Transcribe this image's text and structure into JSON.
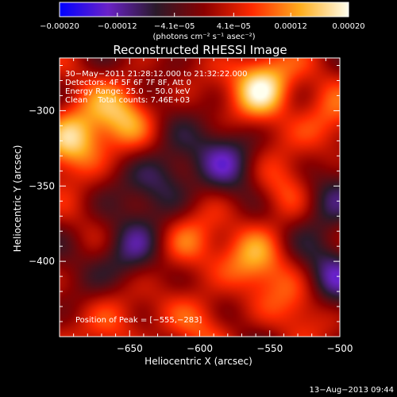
{
  "chart_data": {
    "type": "heatmap",
    "title": "Reconstructed RHESSI Image",
    "xlabel": "Heliocentric X (arcsec)",
    "ylabel": "Heliocentric Y (arcsec)",
    "xlim": [
      -700,
      -500
    ],
    "ylim": [
      -450,
      -265
    ],
    "x_ticks": [
      -650,
      -600,
      -550,
      -500
    ],
    "x_tick_labels": [
      "−650",
      "−600",
      "−550",
      "−500"
    ],
    "y_ticks": [
      -300,
      -350,
      -400
    ],
    "y_tick_labels": [
      "−300",
      "−350",
      "−400"
    ],
    "colorbar": {
      "range": [
        -0.0002,
        0.0002
      ],
      "ticks": [
        -0.0002,
        -0.00012,
        -4.1e-05,
        4.1e-05,
        0.00012,
        0.0002
      ],
      "tick_labels": [
        "−0.00020",
        "−0.00012",
        "−4.1e−05",
        "4.1e−05",
        "0.00012",
        "0.00020"
      ],
      "label": "(photons cm⁻² s⁻¹ asec⁻²)",
      "colormap": [
        "#0000ff",
        "#6a22c8",
        "#2a1a2a",
        "#8a0000",
        "#ff2a00",
        "#ffae1e",
        "#ffffee"
      ]
    },
    "sources": [
      {
        "x": -555,
        "y": -283,
        "amp": 1.0
      },
      {
        "x": -690,
        "y": -320,
        "amp": 0.9
      },
      {
        "x": -655,
        "y": -300,
        "amp": 0.6
      },
      {
        "x": -560,
        "y": -400,
        "amp": 0.55
      },
      {
        "x": -610,
        "y": -390,
        "amp": 0.5
      },
      {
        "x": -510,
        "y": -310,
        "amp": 0.5
      },
      {
        "x": -660,
        "y": -440,
        "amp": 0.45
      },
      {
        "x": -595,
        "y": -440,
        "amp": 0.35
      },
      {
        "x": -540,
        "y": -355,
        "amp": 0.4
      },
      {
        "x": -530,
        "y": -430,
        "amp": 0.35
      },
      {
        "x": -625,
        "y": -345,
        "amp": -0.5
      },
      {
        "x": -580,
        "y": -330,
        "amp": -0.45
      },
      {
        "x": -510,
        "y": -360,
        "amp": -0.5
      },
      {
        "x": -650,
        "y": -395,
        "amp": -0.55
      },
      {
        "x": -505,
        "y": -410,
        "amp": -0.45
      }
    ]
  },
  "info": {
    "line1": "30−May−2011 21:28:12.000 to 21:32:22.000",
    "line2": "Detectors: 4F 5F 6F 7F 8F, Att 0",
    "line3": "Energy Range: 25.0 − 50.0 keV",
    "line4": "Clean    Total counts: 7.46E+03",
    "peak": "Position of Peak = [−555,−283]"
  },
  "timestamp": "13−Aug−2013 09:44"
}
